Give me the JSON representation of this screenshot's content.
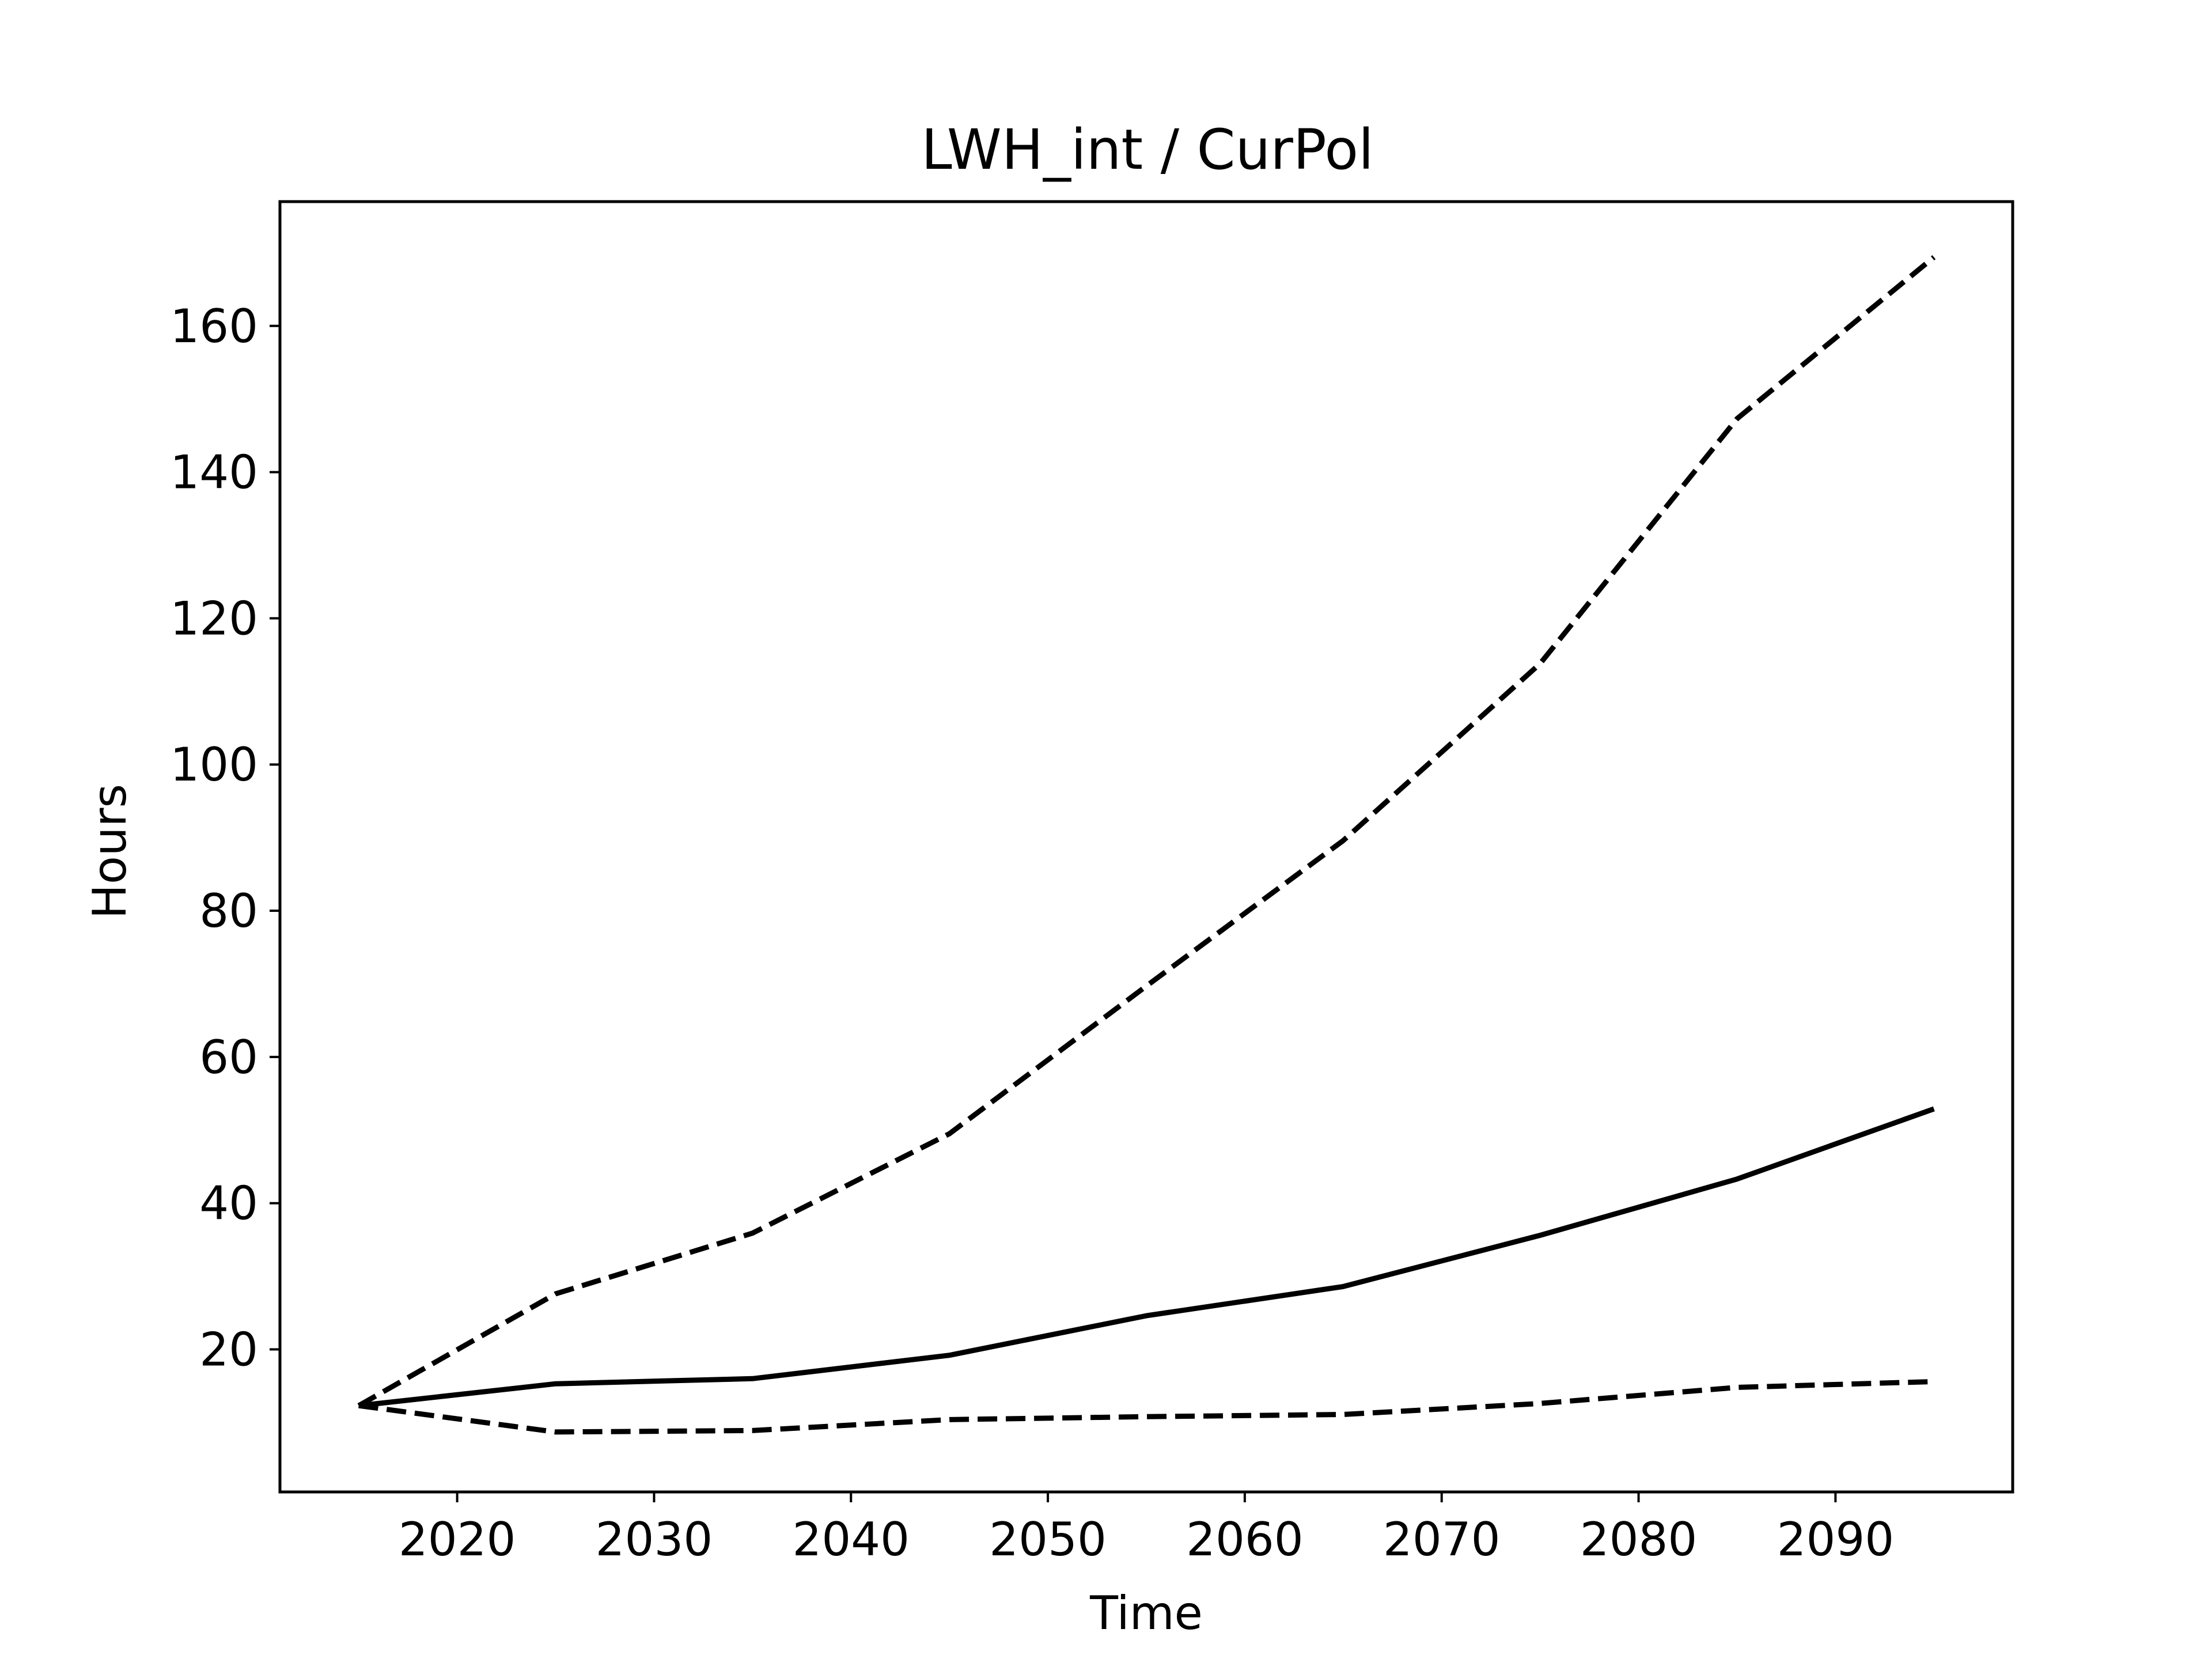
{
  "chart_data": {
    "type": "line",
    "title": "LWH_int / CurPol",
    "xlabel": "Time",
    "ylabel": "Hours",
    "xlim": [
      2011,
      2099
    ],
    "ylim": [
      0.5,
      177
    ],
    "xticks": [
      2020,
      2030,
      2040,
      2050,
      2060,
      2070,
      2080,
      2090
    ],
    "yticks": [
      20,
      40,
      60,
      80,
      100,
      120,
      140,
      160
    ],
    "grid": false,
    "legend": "none",
    "x": [
      2015,
      2025,
      2035,
      2045,
      2055,
      2065,
      2075,
      2085,
      2095
    ],
    "series": [
      {
        "style": "solid",
        "color": "#000000",
        "values": [
          12.3,
          15.3,
          16.0,
          19.2,
          24.6,
          28.6,
          35.6,
          43.3,
          52.9
        ]
      },
      {
        "style": "dashed",
        "color": "#000000",
        "values": [
          12.3,
          27.6,
          35.9,
          49.5,
          69.7,
          89.6,
          113.8,
          147.3,
          169.4
        ]
      },
      {
        "style": "dashed",
        "color": "#000000",
        "values": [
          12.3,
          8.7,
          8.9,
          10.4,
          10.8,
          11.1,
          12.6,
          14.8,
          15.6
        ]
      }
    ]
  }
}
